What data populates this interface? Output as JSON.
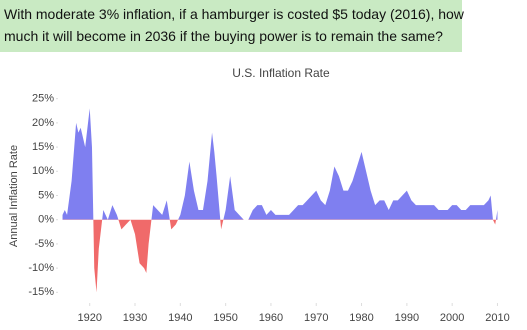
{
  "question": {
    "lines": [
      "With moderate 3% inflation, if a hamburger is costed $5 today (2016), how",
      "much it will become in 2036 if the buying power is to remain the same?"
    ]
  },
  "chart_data": {
    "type": "area",
    "title": "U.S. Inflation Rate",
    "y_label": "Annual Inflation Rate",
    "x": [
      1914,
      1914.5,
      1915,
      1916,
      1917,
      1917.5,
      1918,
      1918.5,
      1919,
      1920,
      1920.5,
      1921,
      1921.5,
      1922,
      1923,
      1924,
      1925,
      1926,
      1927,
      1928,
      1929,
      1930,
      1931,
      1932,
      1932.5,
      1933,
      1934,
      1935,
      1936,
      1937,
      1938,
      1939,
      1940,
      1941,
      1942,
      1943,
      1944,
      1945,
      1946,
      1947,
      1947.5,
      1948,
      1949,
      1950,
      1951,
      1952,
      1953,
      1954,
      1955,
      1956,
      1957,
      1958,
      1959,
      1960,
      1961,
      1962,
      1963,
      1964,
      1965,
      1966,
      1967,
      1968,
      1969,
      1970,
      1971,
      1972,
      1973,
      1974,
      1975,
      1976,
      1977,
      1978,
      1979,
      1980,
      1981,
      1982,
      1983,
      1984,
      1985,
      1986,
      1987,
      1988,
      1989,
      1990,
      1991,
      1992,
      1993,
      1994,
      1995,
      1996,
      1997,
      1998,
      1999,
      2000,
      2001,
      2002,
      2003,
      2004,
      2005,
      2006,
      2007,
      2008,
      2008.5,
      2009,
      2009.5,
      2010
    ],
    "series": [
      {
        "name": "Inflation",
        "color": "#7f7ff0",
        "negative_color": "#f06a6a",
        "values": [
          1,
          2,
          1,
          8,
          20,
          18,
          19,
          17,
          15,
          23,
          15,
          -10,
          -15,
          -6,
          2,
          0,
          3,
          1,
          -2,
          -1,
          0,
          -3,
          -9,
          -10,
          -11,
          -5,
          3,
          2,
          1,
          4,
          -2,
          -1,
          1,
          5,
          12,
          6,
          2,
          2,
          8,
          18,
          14,
          9,
          -2,
          2,
          9,
          2,
          1,
          0,
          0,
          2,
          3,
          3,
          1,
          2,
          1,
          1,
          1,
          1,
          2,
          3,
          3,
          4,
          5,
          6,
          4,
          3,
          6,
          11,
          9,
          6,
          6,
          8,
          11,
          14,
          10,
          6,
          3,
          4,
          4,
          2,
          4,
          4,
          5,
          6,
          4,
          3,
          3,
          3,
          3,
          3,
          2,
          2,
          2,
          3,
          3,
          2,
          2,
          3,
          3,
          3,
          3,
          4,
          5,
          0,
          -1,
          2
        ]
      }
    ],
    "xlim": [
      1913,
      2011
    ],
    "xticks": [
      1920,
      1930,
      1940,
      1950,
      1960,
      1970,
      1980,
      1990,
      2000,
      2010
    ],
    "ylim": [
      -17,
      27
    ],
    "yticks": [
      {
        "value": 25,
        "label": "25%"
      },
      {
        "value": 20,
        "label": "20%"
      },
      {
        "value": 15,
        "label": "15%"
      },
      {
        "value": 10,
        "label": "10%"
      },
      {
        "value": 5,
        "label": "5%"
      },
      {
        "value": 0,
        "label": "0%"
      },
      {
        "value": -5,
        "label": "-5%"
      },
      {
        "value": -10,
        "label": "-10%"
      },
      {
        "value": -15,
        "label": "-15%"
      }
    ]
  }
}
